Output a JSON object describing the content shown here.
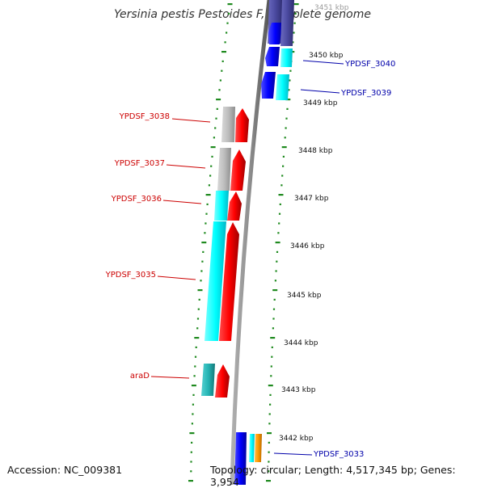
{
  "title": "Yersinia pestis Pestoides F, complete genome",
  "accession": "Accession: NC_009381",
  "topology": "Topology: circular; Length: 4,517,345 bp; Genes: 3,954",
  "colors": {
    "backbone": "#8c8c8c",
    "forward_feature": "#ff0000",
    "reverse_feature": "#0000ff",
    "cyan_feature": "#00ffff",
    "grey_feature": "#bdbdbd",
    "navy_feature": "#4b4aa0",
    "orange_feature": "#ff9900",
    "teal_feature": "#26b5b5",
    "dotted_guide": "#1f8a1f",
    "forward_label": "#cc0000",
    "reverse_label": "#0000aa"
  },
  "scale_ticks": [
    {
      "label": "3451 kbp"
    },
    {
      "label": "3450 kbp"
    },
    {
      "label": "3449 kbp"
    },
    {
      "label": "3448 kbp"
    },
    {
      "label": "3447 kbp"
    },
    {
      "label": "3446 kbp"
    },
    {
      "label": "3445 kbp"
    },
    {
      "label": "3444 kbp"
    },
    {
      "label": "3443 kbp"
    },
    {
      "label": "3442 kbp"
    }
  ],
  "gene_labels": [
    {
      "label": "YPDSF_3040",
      "strand": "reverse"
    },
    {
      "label": "YPDSF_3039",
      "strand": "reverse"
    },
    {
      "label": "YPDSF_3038",
      "strand": "forward"
    },
    {
      "label": "YPDSF_3037",
      "strand": "forward"
    },
    {
      "label": "YPDSF_3036",
      "strand": "forward"
    },
    {
      "label": "YPDSF_3035",
      "strand": "forward"
    },
    {
      "label": "araD",
      "strand": "forward"
    },
    {
      "label": "YPDSF_3033",
      "strand": "reverse"
    }
  ]
}
